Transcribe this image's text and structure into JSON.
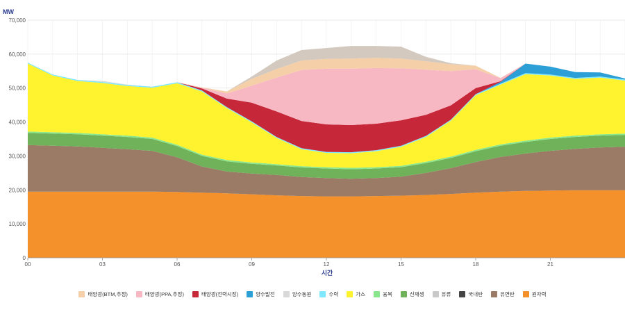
{
  "chart_data": {
    "type": "area",
    "stacked": true,
    "ylabel": "MW",
    "xlabel": "시간",
    "ylim": [
      0,
      70000
    ],
    "yticks": [
      0,
      10000,
      20000,
      30000,
      40000,
      50000,
      60000,
      70000
    ],
    "ytick_labels": [
      "0",
      "10,000",
      "20,000",
      "30,000",
      "40,000",
      "50,000",
      "60,000",
      "70,000"
    ],
    "xlim": [
      0,
      24
    ],
    "xticks": [
      0,
      3,
      6,
      9,
      12,
      15,
      18,
      21
    ],
    "xtick_labels": [
      "00",
      "03",
      "06",
      "09",
      "12",
      "15",
      "18",
      "21"
    ],
    "grid": true,
    "legend_position": "bottom",
    "x": [
      0,
      1,
      2,
      3,
      4,
      5,
      6,
      7,
      8,
      9,
      10,
      11,
      12,
      13,
      14,
      15,
      16,
      17,
      18,
      19,
      20,
      21,
      22,
      23,
      24
    ],
    "series": [
      {
        "name": "원자력",
        "color": "#f5912a",
        "values": [
          19500,
          19500,
          19500,
          19500,
          19500,
          19500,
          19400,
          19200,
          19000,
          18700,
          18400,
          18200,
          18100,
          18100,
          18200,
          18300,
          18500,
          18800,
          19200,
          19500,
          19700,
          19800,
          19900,
          19900,
          19900
        ]
      },
      {
        "name": "유연탄",
        "color": "#9b7a66",
        "values": [
          13700,
          13500,
          13300,
          12900,
          12500,
          12000,
          10200,
          7700,
          6400,
          6100,
          6000,
          5600,
          5400,
          5200,
          5300,
          5600,
          6500,
          7600,
          9000,
          10200,
          11000,
          11700,
          12200,
          12600,
          12800
        ]
      },
      {
        "name": "국내탄",
        "color": "#444444",
        "values": [
          0,
          0,
          0,
          0,
          0,
          0,
          0,
          0,
          0,
          0,
          0,
          0,
          0,
          0,
          0,
          0,
          0,
          0,
          0,
          0,
          0,
          0,
          0,
          0,
          0
        ]
      },
      {
        "name": "유류",
        "color": "#c9c9c9",
        "values": [
          0,
          0,
          0,
          0,
          0,
          0,
          0,
          0,
          0,
          0,
          0,
          0,
          0,
          0,
          0,
          0,
          0,
          0,
          0,
          0,
          0,
          0,
          0,
          0,
          0
        ]
      },
      {
        "name": "신재생",
        "color": "#6fb25a",
        "values": [
          3600,
          3600,
          3600,
          3600,
          3600,
          3500,
          3300,
          3100,
          3000,
          2900,
          2800,
          2800,
          2800,
          2800,
          2800,
          2800,
          2900,
          3000,
          3200,
          3300,
          3400,
          3500,
          3500,
          3500,
          3500
        ]
      },
      {
        "name": "융복",
        "color": "#8ae68c",
        "values": [
          400,
          400,
          400,
          400,
          400,
          400,
          400,
          400,
          400,
          400,
          400,
          400,
          400,
          400,
          400,
          400,
          400,
          400,
          400,
          400,
          400,
          400,
          400,
          400,
          400
        ]
      },
      {
        "name": "가스",
        "color": "#fff22e",
        "values": [
          20000,
          16700,
          15300,
          15100,
          14600,
          14700,
          18100,
          18600,
          15300,
          11800,
          7700,
          5000,
          4200,
          4300,
          4700,
          5600,
          7300,
          10600,
          16100,
          17600,
          19600,
          18300,
          16700,
          16700,
          15600
        ]
      },
      {
        "name": "수력",
        "color": "#7fe8ff",
        "values": [
          300,
          300,
          300,
          300,
          300,
          300,
          300,
          300,
          300,
          300,
          300,
          300,
          300,
          300,
          300,
          300,
          300,
          300,
          300,
          300,
          300,
          300,
          300,
          300,
          300
        ]
      },
      {
        "name": "양수발전",
        "color": "#2b9fd6",
        "values": [
          0,
          0,
          0,
          0,
          0,
          0,
          0,
          0,
          0,
          0,
          0,
          0,
          0,
          0,
          0,
          0,
          0,
          0,
          0,
          500,
          2800,
          2300,
          1700,
          1200,
          300
        ]
      },
      {
        "name": "양수동원",
        "color": "#d9d9d9",
        "values": [
          0,
          0,
          0,
          300,
          100,
          0,
          0,
          0,
          0,
          0,
          0,
          0,
          0,
          0,
          0,
          0,
          0,
          0,
          0,
          0,
          0,
          0,
          0,
          0,
          0
        ]
      },
      {
        "name": "태양광(전력시장)",
        "color": "#c6283a",
        "values": [
          0,
          0,
          0,
          0,
          0,
          0,
          0,
          600,
          2500,
          5500,
          7500,
          8000,
          8100,
          8000,
          7800,
          7500,
          6200,
          4200,
          1800,
          200,
          0,
          0,
          0,
          0,
          0
        ]
      },
      {
        "name": "태양광(PPA,추정)",
        "color": "#f8b8c3",
        "values": [
          0,
          0,
          0,
          0,
          0,
          0,
          0,
          200,
          1500,
          5000,
          10000,
          15000,
          16400,
          16600,
          16400,
          15300,
          13300,
          10100,
          5500,
          900,
          0,
          0,
          0,
          0,
          0
        ]
      },
      {
        "name": "태양광(BTM,추정)",
        "color": "#f5cfa8",
        "values": [
          0,
          0,
          0,
          0,
          0,
          0,
          0,
          100,
          600,
          2000,
          2500,
          2800,
          2900,
          3000,
          3000,
          2900,
          2500,
          2000,
          1100,
          100,
          0,
          0,
          0,
          0,
          0
        ]
      },
      {
        "name": "",
        "color": "#d4c9bf",
        "values": [
          0,
          0,
          0,
          0,
          0,
          0,
          0,
          0,
          0,
          700,
          2500,
          3100,
          3200,
          3700,
          3500,
          3500,
          1300,
          300,
          0,
          0,
          0,
          0,
          0,
          0,
          0
        ]
      }
    ],
    "legend_entries": [
      {
        "label": "태양광(BTM,추정)",
        "color": "#f5cfa8"
      },
      {
        "label": "태양광(PPA,추정)",
        "color": "#f8b8c3"
      },
      {
        "label": "태양광(전력시장)",
        "color": "#c6283a"
      },
      {
        "label": "양수발전",
        "color": "#2b9fd6"
      },
      {
        "label": "양수동원",
        "color": "#d9d9d9"
      },
      {
        "label": "수력",
        "color": "#7fe8ff"
      },
      {
        "label": "가스",
        "color": "#fff22e"
      },
      {
        "label": "융복",
        "color": "#8ae68c"
      },
      {
        "label": "신재생",
        "color": "#6fb25a"
      },
      {
        "label": "유류",
        "color": "#c9c9c9"
      },
      {
        "label": "국내탄",
        "color": "#444444"
      },
      {
        "label": "유연탄",
        "color": "#9b7a66"
      },
      {
        "label": "원자력",
        "color": "#f5912a"
      }
    ]
  }
}
